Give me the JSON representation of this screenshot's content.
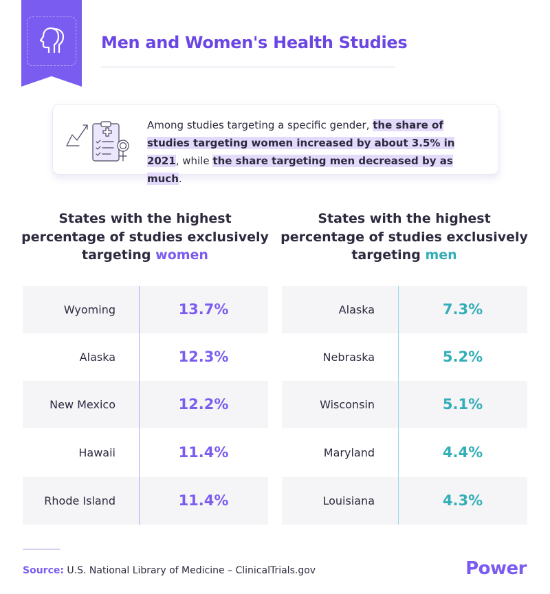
{
  "header": {
    "title": "Men and Women's Health Studies",
    "icon": "gender-heads-icon"
  },
  "callout": {
    "icon": "clipboard-chart-icon",
    "text_plain_1": "Among studies targeting a specific gender, ",
    "text_highlight_1": "the share of studies targeting women increased by about 3.5% in 2021",
    "text_plain_2": ", while ",
    "text_highlight_2": "the share targeting men decreased by as much",
    "text_plain_3": "."
  },
  "women_table": {
    "heading_prefix": "States with the highest percentage of studies exclusively targeting",
    "heading_accent": "women",
    "rows": [
      {
        "state": "Wyoming",
        "value": "13.7%"
      },
      {
        "state": "Alaska",
        "value": "12.3%"
      },
      {
        "state": "New Mexico",
        "value": "12.2%"
      },
      {
        "state": "Hawaii",
        "value": "11.4%"
      },
      {
        "state": "Rhode Island",
        "value": "11.4%"
      }
    ]
  },
  "men_table": {
    "heading_prefix": "States with the highest percentage of studies exclusively targeting",
    "heading_accent": "men",
    "rows": [
      {
        "state": "Alaska",
        "value": "7.3%"
      },
      {
        "state": "Nebraska",
        "value": "5.2%"
      },
      {
        "state": "Wisconsin",
        "value": "5.1%"
      },
      {
        "state": "Maryland",
        "value": "4.4%"
      },
      {
        "state": "Louisiana",
        "value": "4.3%"
      }
    ]
  },
  "footer": {
    "source_label": "Source:",
    "source_text": "U.S. National Library of Medicine – ClinicalTrials.gov",
    "brand": "Power"
  },
  "colors": {
    "accent_women": "#7b5cf0",
    "accent_men": "#33aeb8",
    "highlight": "#e4dafc"
  }
}
